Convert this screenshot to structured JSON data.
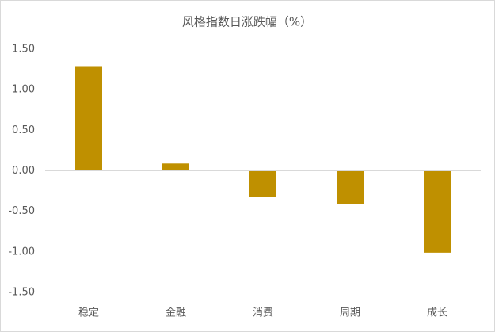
{
  "chart_data": {
    "type": "bar",
    "title": "风格指数日涨跌幅（%）",
    "categories": [
      "稳定",
      "金融",
      "消费",
      "周期",
      "成长"
    ],
    "values": [
      1.29,
      0.09,
      -0.32,
      -0.41,
      -1.01
    ],
    "color": "#bf9000",
    "ylim": [
      -1.5,
      1.5
    ],
    "yticks": [
      {
        "value": -1.5,
        "label": "-1.50"
      },
      {
        "value": -1,
        "label": "-1.00"
      },
      {
        "value": -0.5,
        "label": "-0.50"
      },
      {
        "value": 0,
        "label": "0.00"
      },
      {
        "value": 0.5,
        "label": "0.50"
      },
      {
        "value": 1,
        "label": "1.00"
      },
      {
        "value": 1.5,
        "label": "1.50"
      }
    ],
    "grid": false
  }
}
